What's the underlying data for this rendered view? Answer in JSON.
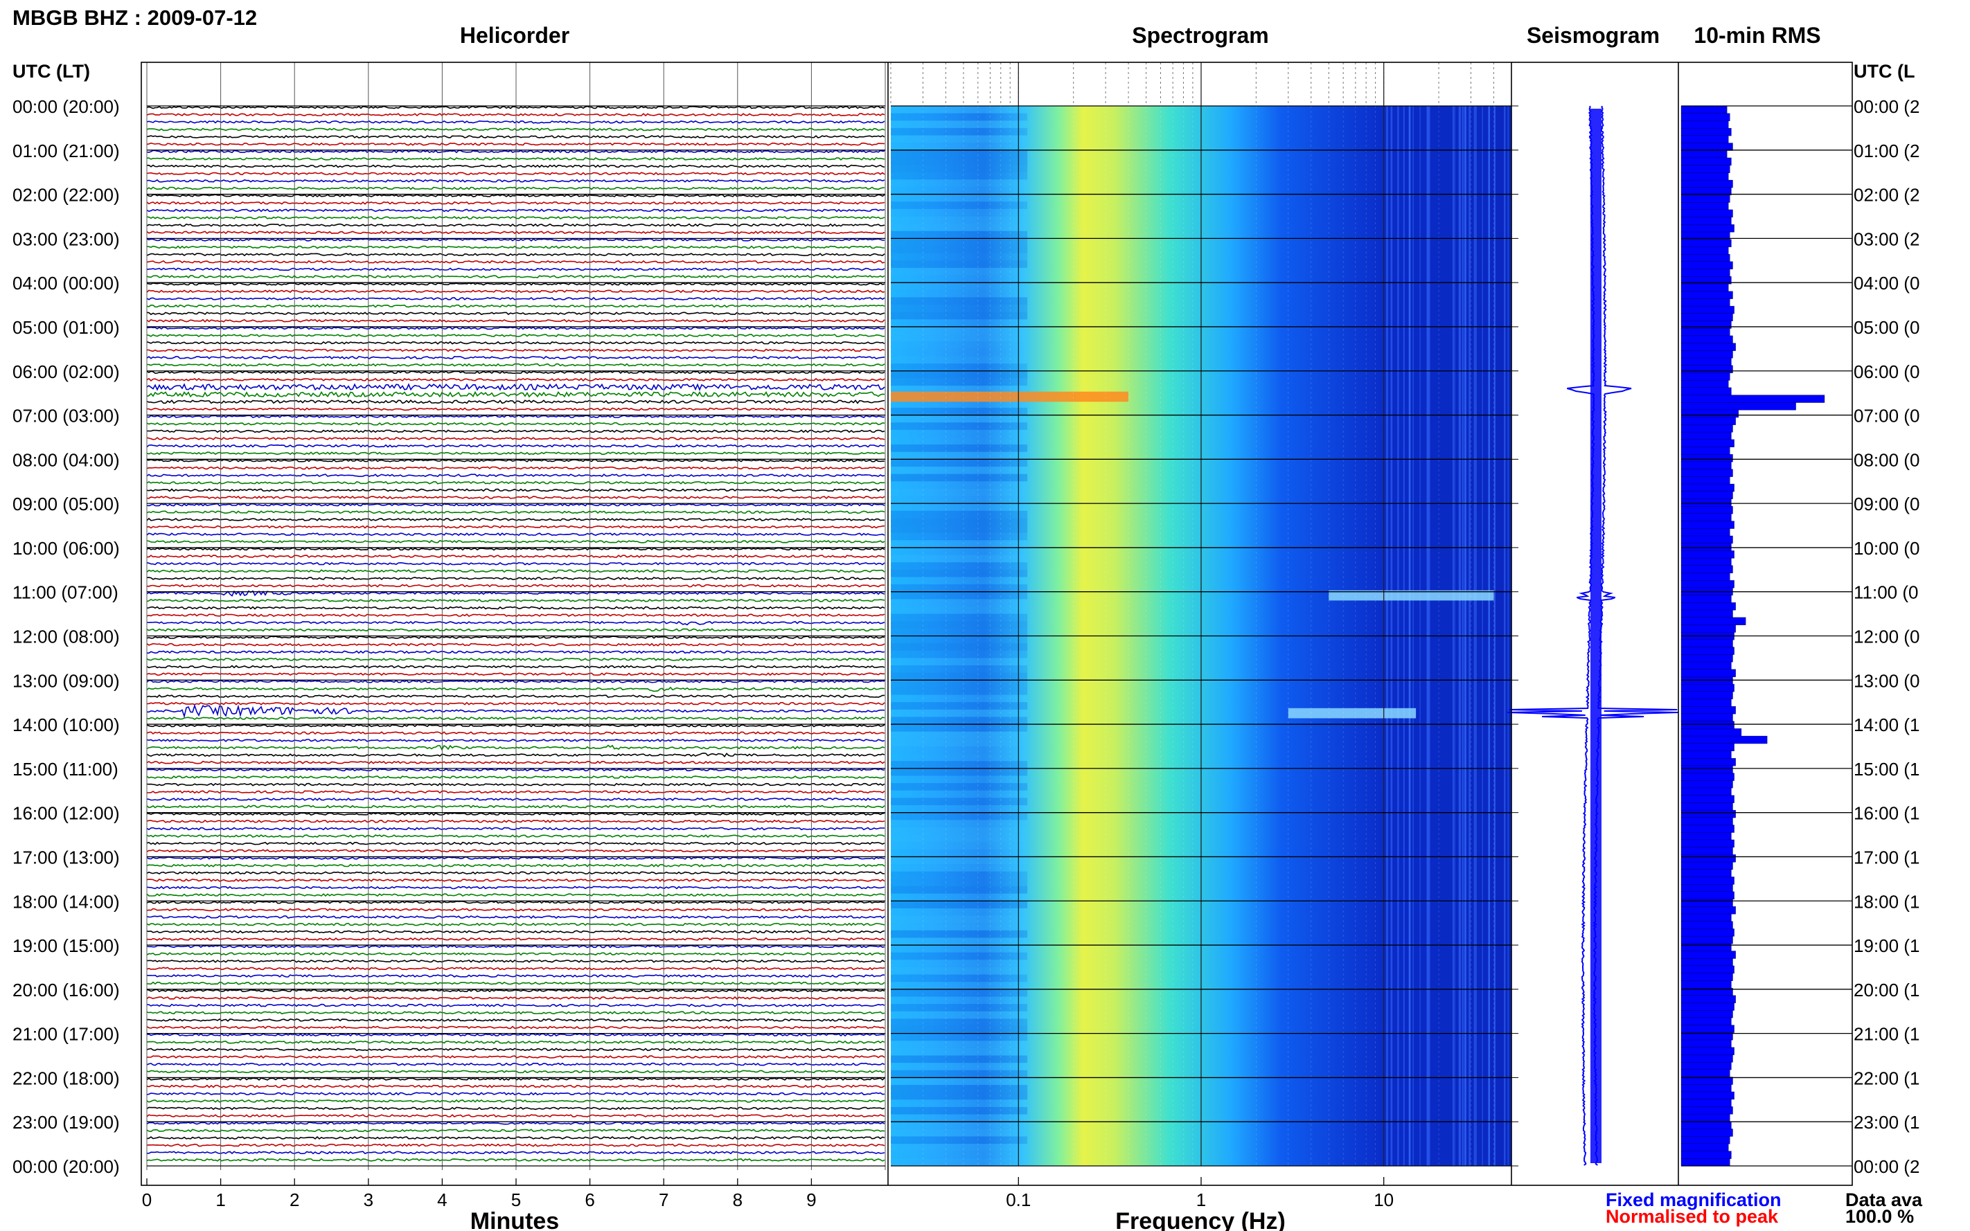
{
  "header": {
    "station_title": "MBGB BHZ : 2009-07-12",
    "utc_lt_label": "UTC (LT)",
    "utc_lt_label_right": "UTC (L"
  },
  "panels": {
    "helicorder": "Helicorder",
    "spectrogram": "Spectrogram",
    "seismogram": "Seismogram",
    "rms": "10-min RMS"
  },
  "legend": {
    "fixed": "Fixed magnification",
    "normalised": "Normalised to peak",
    "fixed_color": "#0000ff",
    "normalised_color": "#ff0000",
    "availability_label": "Data ava",
    "availability_value": "100.0 %"
  },
  "trace_colors": [
    "#000000",
    "#c00000",
    "#0000c8",
    "#008000"
  ],
  "chart_data": [
    {
      "type": "line",
      "panel": "Helicorder",
      "xlabel": "Minutes",
      "ylabel": "UTC (LT)",
      "xlim": [
        0,
        10
      ],
      "x_ticks": [
        "0",
        "1",
        "2",
        "3",
        "4",
        "5",
        "6",
        "7",
        "8",
        "9"
      ],
      "y_ticks": [
        "00:00 (20:00)",
        "01:00 (21:00)",
        "02:00 (22:00)",
        "03:00 (23:00)",
        "04:00 (00:00)",
        "05:00 (01:00)",
        "06:00 (02:00)",
        "07:00 (03:00)",
        "08:00 (04:00)",
        "09:00 (05:00)",
        "10:00 (06:00)",
        "11:00 (07:00)",
        "12:00 (08:00)",
        "13:00 (09:00)",
        "14:00 (10:00)",
        "15:00 (11:00)",
        "16:00 (12:00)",
        "17:00 (13:00)",
        "18:00 (14:00)",
        "19:00 (15:00)",
        "20:00 (16:00)",
        "21:00 (17:00)",
        "22:00 (18:00)",
        "23:00 (19:00)",
        "00:00 (20:00)"
      ],
      "lines_per_hour": 6,
      "hours": 24,
      "events": [
        {
          "hour": 6,
          "line": 2,
          "amplitude": 2.6
        },
        {
          "hour": 6,
          "line": 3,
          "amplitude": 2.2
        },
        {
          "hour": 6,
          "line": 4,
          "amplitude": 1.4
        },
        {
          "hour": 11,
          "line": 0,
          "minute_start": 1.0,
          "minute_end": 1.9,
          "amplitude": 1.8
        },
        {
          "hour": 11,
          "line": 4,
          "minute_start": 7.2,
          "minute_end": 7.6,
          "amplitude": 1.6
        },
        {
          "hour": 13,
          "line": 1,
          "minute_start": 6.8,
          "minute_end": 7.1,
          "amplitude": 1.6
        },
        {
          "hour": 13,
          "line": 4,
          "minute_start": 0.5,
          "minute_end": 3.0,
          "amplitude": 4.5
        },
        {
          "hour": 14,
          "line": 3,
          "minute_start": 3.9,
          "minute_end": 4.3,
          "amplitude": 1.5
        },
        {
          "hour": 14,
          "line": 3,
          "minute_start": 6.2,
          "minute_end": 6.5,
          "amplitude": 1.5
        },
        {
          "hour": 14,
          "line": 4,
          "minute_start": 7.5,
          "minute_end": 7.9,
          "amplitude": 1.4
        }
      ]
    },
    {
      "type": "heatmap",
      "panel": "Spectrogram",
      "xlabel": "Frequency (Hz)",
      "x_scale": "log",
      "xlim": [
        0.02,
        50
      ],
      "x_ticks": [
        "0.1",
        "1",
        "10"
      ],
      "colormap": "jet",
      "peak_frequency_hz": 0.2,
      "events": [
        {
          "hour": 6,
          "line": 3,
          "band_hz": [
            0.02,
            0.4
          ],
          "level": 0.85
        },
        {
          "hour": 11,
          "line": 0,
          "band_hz": [
            5,
            40
          ],
          "level": 0.6
        },
        {
          "hour": 13,
          "line": 4,
          "band_hz": [
            3,
            15
          ],
          "level": 0.8
        }
      ]
    },
    {
      "type": "line",
      "panel": "Seismogram",
      "events": [
        {
          "hour": 6,
          "line": 2,
          "amplitude": 1.0
        },
        {
          "hour": 11,
          "line": 0,
          "amplitude": 0.6
        },
        {
          "hour": 13,
          "line": 4,
          "amplitude": 1.0
        }
      ]
    },
    {
      "type": "bar",
      "panel": "10-min RMS",
      "orientation": "horizontal",
      "values": [
        0.32,
        0.34,
        0.33,
        0.35,
        0.33,
        0.36,
        0.32,
        0.35,
        0.34,
        0.33,
        0.36,
        0.35,
        0.34,
        0.33,
        0.36,
        0.35,
        0.37,
        0.34,
        0.35,
        0.33,
        0.34,
        0.36,
        0.34,
        0.35,
        0.33,
        0.36,
        0.34,
        0.37,
        0.36,
        0.35,
        0.34,
        0.36,
        0.38,
        0.36,
        0.35,
        0.36,
        0.34,
        0.33,
        0.35,
        1.0,
        0.8,
        0.4,
        0.38,
        0.36,
        0.35,
        0.37,
        0.34,
        0.36,
        0.35,
        0.36,
        0.34,
        0.37,
        0.36,
        0.35,
        0.36,
        0.35,
        0.37,
        0.34,
        0.36,
        0.35,
        0.37,
        0.35,
        0.36,
        0.34,
        0.37,
        0.36,
        0.35,
        0.38,
        0.36,
        0.45,
        0.38,
        0.37,
        0.36,
        0.37,
        0.36,
        0.35,
        0.38,
        0.36,
        0.37,
        0.36,
        0.35,
        0.38,
        0.36,
        0.37,
        0.42,
        0.6,
        0.37,
        0.35,
        0.38,
        0.36,
        0.37,
        0.36,
        0.35,
        0.37,
        0.36,
        0.38,
        0.36,
        0.37,
        0.35,
        0.37,
        0.36,
        0.38,
        0.36,
        0.35,
        0.37,
        0.36,
        0.37,
        0.36,
        0.38,
        0.35,
        0.36,
        0.37,
        0.36,
        0.35,
        0.38,
        0.36,
        0.37,
        0.36,
        0.35,
        0.36,
        0.38,
        0.37,
        0.36,
        0.35,
        0.37,
        0.36,
        0.35,
        0.37,
        0.36,
        0.35,
        0.34,
        0.36,
        0.35,
        0.37,
        0.35,
        0.36,
        0.34,
        0.35,
        0.36,
        0.34,
        0.33,
        0.35,
        0.34
      ]
    }
  ]
}
